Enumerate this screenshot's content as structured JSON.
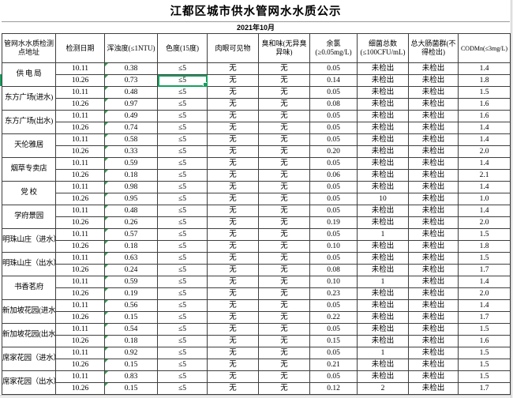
{
  "app": {
    "title": "江都区城市供水管网水水质公示",
    "month": "2021年10月"
  },
  "colors": {
    "selection_green": "#17a05e",
    "error_triangle_green": "#2f9e4f",
    "grid_border": "#3f3f3f",
    "outside_area_grey": "#ececec"
  },
  "table": {
    "columns": [
      {
        "key": "location",
        "label": "管网水水质检测点地址"
      },
      {
        "key": "date",
        "label": "检测日期"
      },
      {
        "key": "turbidity",
        "label": "浑浊度(≤1NTU)"
      },
      {
        "key": "color",
        "label": "色度(15度)"
      },
      {
        "key": "visible",
        "label": "肉眼可见物"
      },
      {
        "key": "odor",
        "label": "臭和味(无异臭异味)"
      },
      {
        "key": "chlorine",
        "label": "余氯(≥0.05mg/L)"
      },
      {
        "key": "bacteria",
        "label": "细菌总数(≤100CFU/mL)"
      },
      {
        "key": "coliform",
        "label": "总大肠菌群(不得检出)"
      },
      {
        "key": "codmn",
        "label": "CODMn(≤3mg/L)"
      }
    ],
    "locations": [
      {
        "name": "供 电 局",
        "entries": [
          {
            "date": "10.11",
            "turbidity": "0.38",
            "color": "≤5",
            "visible": "无",
            "odor": "无",
            "chlorine": "0.05",
            "bacteria": "未检出",
            "coliform": "未检出",
            "codmn": "1.4"
          },
          {
            "date": "10.26",
            "turbidity": "0.73",
            "color": "≤5",
            "visible": "无",
            "odor": "无",
            "chlorine": "0.14",
            "bacteria": "未检出",
            "coliform": "未检出",
            "codmn": "1.8"
          }
        ]
      },
      {
        "name": "东方广场(进水)",
        "entries": [
          {
            "date": "10.11",
            "turbidity": "0.48",
            "color": "≤5",
            "visible": "无",
            "odor": "无",
            "chlorine": "0.05",
            "bacteria": "未检出",
            "coliform": "未检出",
            "codmn": "1.5"
          },
          {
            "date": "10.26",
            "turbidity": "0.97",
            "color": "≤5",
            "visible": "无",
            "odor": "无",
            "chlorine": "0.08",
            "bacteria": "未检出",
            "coliform": "未检出",
            "codmn": "1.6"
          }
        ]
      },
      {
        "name": "东方广场(出水)",
        "entries": [
          {
            "date": "10.11",
            "turbidity": "0.49",
            "color": "≤5",
            "visible": "无",
            "odor": "无",
            "chlorine": "0.05",
            "bacteria": "未检出",
            "coliform": "未检出",
            "codmn": "1.6"
          },
          {
            "date": "10.26",
            "turbidity": "0.74",
            "color": "≤5",
            "visible": "无",
            "odor": "无",
            "chlorine": "0.05",
            "bacteria": "未检出",
            "coliform": "未检出",
            "codmn": "1.4"
          }
        ]
      },
      {
        "name": "天伦雅居",
        "entries": [
          {
            "date": "10.11",
            "turbidity": "0.58",
            "color": "≤5",
            "visible": "无",
            "odor": "无",
            "chlorine": "0.05",
            "bacteria": "未检出",
            "coliform": "未检出",
            "codmn": "1.4"
          },
          {
            "date": "10.26",
            "turbidity": "0.33",
            "color": "≤5",
            "visible": "无",
            "odor": "无",
            "chlorine": "0.20",
            "bacteria": "未检出",
            "coliform": "未检出",
            "codmn": "2.0"
          }
        ]
      },
      {
        "name": "烟草专卖店",
        "entries": [
          {
            "date": "10.11",
            "turbidity": "0.59",
            "color": "≤5",
            "visible": "无",
            "odor": "无",
            "chlorine": "0.05",
            "bacteria": "未检出",
            "coliform": "未检出",
            "codmn": "1.4"
          },
          {
            "date": "10.26",
            "turbidity": "0.18",
            "color": "≤5",
            "visible": "无",
            "odor": "无",
            "chlorine": "0.06",
            "bacteria": "未检出",
            "coliform": "未检出",
            "codmn": "2.1"
          }
        ]
      },
      {
        "name": "党  校",
        "entries": [
          {
            "date": "10.11",
            "turbidity": "0.98",
            "color": "≤5",
            "visible": "无",
            "odor": "无",
            "chlorine": "0.05",
            "bacteria": "未检出",
            "coliform": "未检出",
            "codmn": "1.4"
          },
          {
            "date": "10.26",
            "turbidity": "0.95",
            "color": "≤5",
            "visible": "无",
            "odor": "无",
            "chlorine": "0.05",
            "bacteria": "10",
            "coliform": "未检出",
            "codmn": "1.0"
          }
        ]
      },
      {
        "name": "学府景园",
        "entries": [
          {
            "date": "10.11",
            "turbidity": "0.48",
            "color": "≤5",
            "visible": "无",
            "odor": "无",
            "chlorine": "0.05",
            "bacteria": "未检出",
            "coliform": "未检出",
            "codmn": "1.4"
          },
          {
            "date": "10.26",
            "turbidity": "0.26",
            "color": "≤5",
            "visible": "无",
            "odor": "无",
            "chlorine": "0.19",
            "bacteria": "未检出",
            "coliform": "未检出",
            "codmn": "2.0"
          }
        ]
      },
      {
        "name": "明珠山庄（进水）",
        "entries": [
          {
            "date": "10.11",
            "turbidity": "0.57",
            "color": "≤5",
            "visible": "无",
            "odor": "无",
            "chlorine": "0.05",
            "bacteria": "1",
            "coliform": "未检出",
            "codmn": "1.5"
          },
          {
            "date": "10.26",
            "turbidity": "0.18",
            "color": "≤5",
            "visible": "无",
            "odor": "无",
            "chlorine": "0.10",
            "bacteria": "未检出",
            "coliform": "未检出",
            "codmn": "1.8"
          }
        ]
      },
      {
        "name": "明珠山庄（出水）",
        "entries": [
          {
            "date": "10.11",
            "turbidity": "0.63",
            "color": "≤5",
            "visible": "无",
            "odor": "无",
            "chlorine": "0.05",
            "bacteria": "未检出",
            "coliform": "未检出",
            "codmn": "1.5"
          },
          {
            "date": "10.26",
            "turbidity": "0.24",
            "color": "≤5",
            "visible": "无",
            "odor": "无",
            "chlorine": "0.08",
            "bacteria": "未检出",
            "coliform": "未检出",
            "codmn": "1.7"
          }
        ]
      },
      {
        "name": "书香茗府",
        "entries": [
          {
            "date": "10.11",
            "turbidity": "0.59",
            "color": "≤5",
            "visible": "无",
            "odor": "无",
            "chlorine": "0.10",
            "bacteria": "1",
            "coliform": "未检出",
            "codmn": "1.4"
          },
          {
            "date": "10.26",
            "turbidity": "0.19",
            "color": "≤5",
            "visible": "无",
            "odor": "无",
            "chlorine": "0.23",
            "bacteria": "未检出",
            "coliform": "未检出",
            "codmn": "2.0"
          }
        ]
      },
      {
        "name": "新加坡花园(进水)",
        "entries": [
          {
            "date": "10.11",
            "turbidity": "0.56",
            "color": "≤5",
            "visible": "无",
            "odor": "无",
            "chlorine": "0.05",
            "bacteria": "未检出",
            "coliform": "未检出",
            "codmn": "1.4"
          },
          {
            "date": "10.26",
            "turbidity": "0.15",
            "color": "≤5",
            "visible": "无",
            "odor": "无",
            "chlorine": "0.22",
            "bacteria": "未检出",
            "coliform": "未检出",
            "codmn": "1.7"
          }
        ]
      },
      {
        "name": "新加坡花园(出水)",
        "entries": [
          {
            "date": "10.11",
            "turbidity": "0.54",
            "color": "≤5",
            "visible": "无",
            "odor": "无",
            "chlorine": "0.05",
            "bacteria": "未检出",
            "coliform": "未检出",
            "codmn": "1.5"
          },
          {
            "date": "10.26",
            "turbidity": "0.18",
            "color": "≤5",
            "visible": "无",
            "odor": "无",
            "chlorine": "0.15",
            "bacteria": "未检出",
            "coliform": "未检出",
            "codmn": "1.6"
          }
        ]
      },
      {
        "name": "席家花园（进水）",
        "entries": [
          {
            "date": "10.11",
            "turbidity": "0.92",
            "color": "≤5",
            "visible": "无",
            "odor": "无",
            "chlorine": "0.05",
            "bacteria": "1",
            "coliform": "未检出",
            "codmn": "1.5"
          },
          {
            "date": "10.26",
            "turbidity": "0.15",
            "color": "≤5",
            "visible": "无",
            "odor": "无",
            "chlorine": "0.21",
            "bacteria": "未检出",
            "coliform": "未检出",
            "codmn": "1.5"
          }
        ]
      },
      {
        "name": "席家花园（出水）",
        "entries": [
          {
            "date": "10.11",
            "turbidity": "0.83",
            "color": "≤5",
            "visible": "无",
            "odor": "无",
            "chlorine": "0.05",
            "bacteria": "未检出",
            "coliform": "未检出",
            "codmn": "1.5"
          },
          {
            "date": "10.26",
            "turbidity": "0.15",
            "color": "≤5",
            "visible": "无",
            "odor": "无",
            "chlorine": "0.12",
            "bacteria": "2",
            "coliform": "未检出",
            "codmn": "1.7"
          }
        ]
      }
    ],
    "selection": {
      "location_index": 0,
      "entry_index": 1,
      "column_key": "color"
    }
  }
}
